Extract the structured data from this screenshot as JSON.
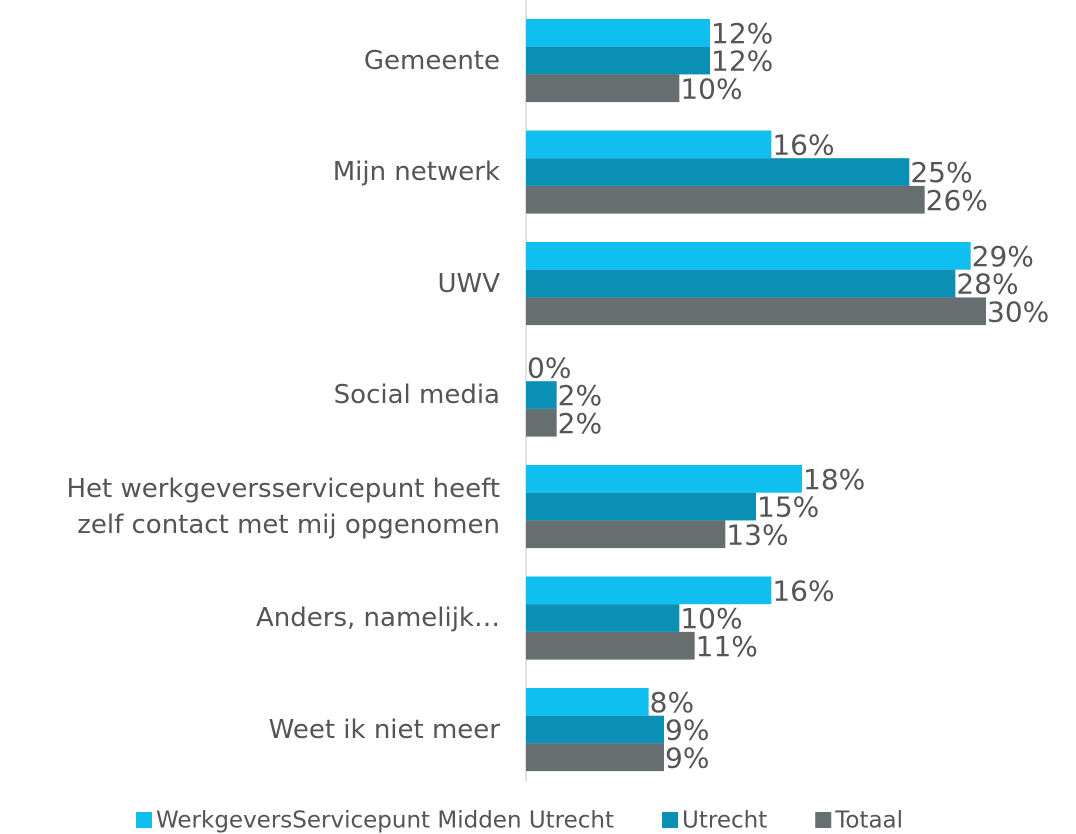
{
  "chart_data": {
    "type": "bar",
    "orientation": "horizontal",
    "categories": [
      "Gemeente",
      "Mijn netwerk",
      "UWV",
      "Social media",
      "Het werkgeversservicepunt heeft\nzelf contact met mij opgenomen",
      "Anders, namelijk…",
      "Weet ik niet meer"
    ],
    "series": [
      {
        "name": "WerkgeversServicepunt Midden Utrecht",
        "color": "#0fbfef",
        "values": [
          12,
          16,
          29,
          0,
          18,
          16,
          8
        ],
        "value_labels": [
          "12%",
          "16%",
          "29%",
          "0%",
          "18%",
          "16%",
          "8%"
        ]
      },
      {
        "name": "Utrecht",
        "color": "#0a8fb5",
        "values": [
          12,
          25,
          28,
          2,
          15,
          10,
          9
        ],
        "value_labels": [
          "12%",
          "25%",
          "28%",
          "2%",
          "15%",
          "10%",
          "9%"
        ]
      },
      {
        "name": "Totaal",
        "color": "#666e70",
        "values": [
          10,
          26,
          30,
          2,
          13,
          11,
          9
        ],
        "value_labels": [
          "10%",
          "26%",
          "30%",
          "2%",
          "13%",
          "11%",
          "9%"
        ]
      }
    ],
    "xlim": [
      0,
      30
    ],
    "legend": "bottom"
  }
}
